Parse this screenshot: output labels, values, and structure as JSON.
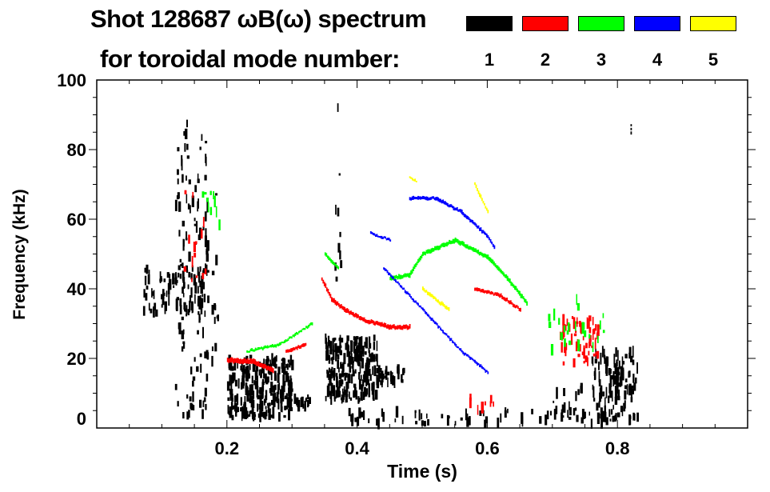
{
  "chart_data": {
    "type": "heatmap",
    "title": "Shot 128687 ωB(ω) spectrum",
    "subtitle": "for toroidal mode number:",
    "xlabel": "Time (s)",
    "ylabel": "Frequency (kHz)",
    "xlim": [
      0,
      1.0
    ],
    "ylim": [
      0,
      100
    ],
    "xticks": [
      "0.2",
      "0.4",
      "0.6",
      "0.8"
    ],
    "xtick_values": [
      0.2,
      0.4,
      0.6,
      0.8
    ],
    "yticks": [
      "0",
      "20",
      "40",
      "60",
      "80",
      "100"
    ],
    "ytick_values": [
      0,
      20,
      40,
      60,
      80,
      100
    ],
    "legend": {
      "placement": "top-right",
      "entries": [
        {
          "label": "1",
          "mode": 1,
          "color": "#000000"
        },
        {
          "label": "2",
          "mode": 2,
          "color": "#ff0000"
        },
        {
          "label": "3",
          "mode": 3,
          "color": "#00ff00"
        },
        {
          "label": "4",
          "mode": 4,
          "color": "#0000ff"
        },
        {
          "label": "5",
          "mode": 5,
          "color": "#ffff00"
        }
      ]
    },
    "features": [
      {
        "mode": 1,
        "kind": "patch",
        "t": [
          0.07,
          0.17
        ],
        "f": [
          33,
          46
        ],
        "density": 90
      },
      {
        "mode": 1,
        "kind": "patch",
        "t": [
          0.12,
          0.17
        ],
        "f": [
          3,
          88
        ],
        "density": 120
      },
      {
        "mode": 1,
        "kind": "patch",
        "t": [
          0.175,
          0.185
        ],
        "f": [
          10,
          70
        ],
        "density": 12
      },
      {
        "mode": 1,
        "kind": "patch",
        "t": [
          0.2,
          0.3
        ],
        "f": [
          3,
          20
        ],
        "density": 260
      },
      {
        "mode": 1,
        "kind": "patch",
        "t": [
          0.3,
          0.33
        ],
        "f": [
          6,
          9
        ],
        "density": 15
      },
      {
        "mode": 1,
        "kind": "patch",
        "t": [
          0.35,
          0.43
        ],
        "f": [
          8,
          26
        ],
        "density": 230
      },
      {
        "mode": 1,
        "kind": "patch",
        "t": [
          0.43,
          0.47
        ],
        "f": [
          13,
          17
        ],
        "density": 30
      },
      {
        "mode": 1,
        "kind": "patch",
        "t": [
          0.38,
          0.8
        ],
        "f": [
          1,
          5
        ],
        "density": 70
      },
      {
        "mode": 1,
        "kind": "patch",
        "t": [
          0.76,
          0.83
        ],
        "f": [
          2,
          22
        ],
        "density": 120
      },
      {
        "mode": 1,
        "kind": "patch",
        "t": [
          0.7,
          0.76
        ],
        "f": [
          4,
          12
        ],
        "density": 15
      },
      {
        "mode": 1,
        "kind": "patch",
        "t": [
          0.365,
          0.375
        ],
        "f": [
          40,
          93
        ],
        "density": 10
      },
      {
        "mode": 1,
        "kind": "trace",
        "points": [
          [
            0.82,
            85
          ],
          [
            0.82,
            87
          ]
        ],
        "width": 2
      },
      {
        "mode": 2,
        "kind": "trace",
        "points": [
          [
            0.2,
            19.5
          ],
          [
            0.24,
            19
          ],
          [
            0.27,
            16.5
          ]
        ],
        "width": 5
      },
      {
        "mode": 2,
        "kind": "trace",
        "points": [
          [
            0.29,
            22
          ],
          [
            0.32,
            24
          ]
        ],
        "width": 3
      },
      {
        "mode": 2,
        "kind": "trace",
        "points": [
          [
            0.345,
            43
          ],
          [
            0.36,
            37
          ],
          [
            0.38,
            34
          ],
          [
            0.41,
            31
          ],
          [
            0.45,
            29
          ],
          [
            0.48,
            29
          ]
        ],
        "width": 4
      },
      {
        "mode": 2,
        "kind": "trace",
        "points": [
          [
            0.58,
            40
          ],
          [
            0.62,
            38
          ],
          [
            0.65,
            34
          ]
        ],
        "width": 3
      },
      {
        "mode": 2,
        "kind": "patch",
        "t": [
          0.71,
          0.77
        ],
        "f": [
          18,
          32
        ],
        "density": 60
      },
      {
        "mode": 2,
        "kind": "patch",
        "t": [
          0.13,
          0.17
        ],
        "f": [
          40,
          68
        ],
        "density": 14
      },
      {
        "mode": 2,
        "kind": "patch",
        "t": [
          0.57,
          0.61
        ],
        "f": [
          5,
          10
        ],
        "density": 8
      },
      {
        "mode": 3,
        "kind": "trace",
        "points": [
          [
            0.45,
            43
          ],
          [
            0.48,
            44
          ],
          [
            0.5,
            50
          ],
          [
            0.55,
            54
          ],
          [
            0.6,
            49
          ],
          [
            0.63,
            43
          ],
          [
            0.66,
            36
          ]
        ],
        "width": 4
      },
      {
        "mode": 3,
        "kind": "trace",
        "points": [
          [
            0.35,
            50
          ],
          [
            0.37,
            46
          ]
        ],
        "width": 3
      },
      {
        "mode": 3,
        "kind": "trace",
        "points": [
          [
            0.23,
            22
          ],
          [
            0.28,
            24
          ],
          [
            0.33,
            30
          ]
        ],
        "width": 2
      },
      {
        "mode": 3,
        "kind": "patch",
        "t": [
          0.69,
          0.78
        ],
        "f": [
          22,
          38
        ],
        "density": 25
      },
      {
        "mode": 3,
        "kind": "patch",
        "t": [
          0.16,
          0.19
        ],
        "f": [
          58,
          68
        ],
        "density": 10
      },
      {
        "mode": 4,
        "kind": "trace",
        "points": [
          [
            0.48,
            66
          ],
          [
            0.52,
            66
          ],
          [
            0.56,
            62
          ],
          [
            0.6,
            55
          ],
          [
            0.61,
            52
          ]
        ],
        "width": 3
      },
      {
        "mode": 4,
        "kind": "trace",
        "points": [
          [
            0.44,
            46
          ],
          [
            0.48,
            38
          ],
          [
            0.52,
            30
          ],
          [
            0.56,
            22
          ],
          [
            0.6,
            16
          ]
        ],
        "width": 2
      },
      {
        "mode": 4,
        "kind": "trace",
        "points": [
          [
            0.42,
            56
          ],
          [
            0.45,
            54
          ]
        ],
        "width": 2
      },
      {
        "mode": 5,
        "kind": "trace",
        "points": [
          [
            0.5,
            40
          ],
          [
            0.54,
            34
          ]
        ],
        "width": 3
      },
      {
        "mode": 5,
        "kind": "trace",
        "points": [
          [
            0.58,
            70
          ],
          [
            0.6,
            62
          ]
        ],
        "width": 3
      },
      {
        "mode": 5,
        "kind": "trace",
        "points": [
          [
            0.48,
            72
          ],
          [
            0.49,
            71
          ]
        ],
        "width": 2
      }
    ]
  }
}
